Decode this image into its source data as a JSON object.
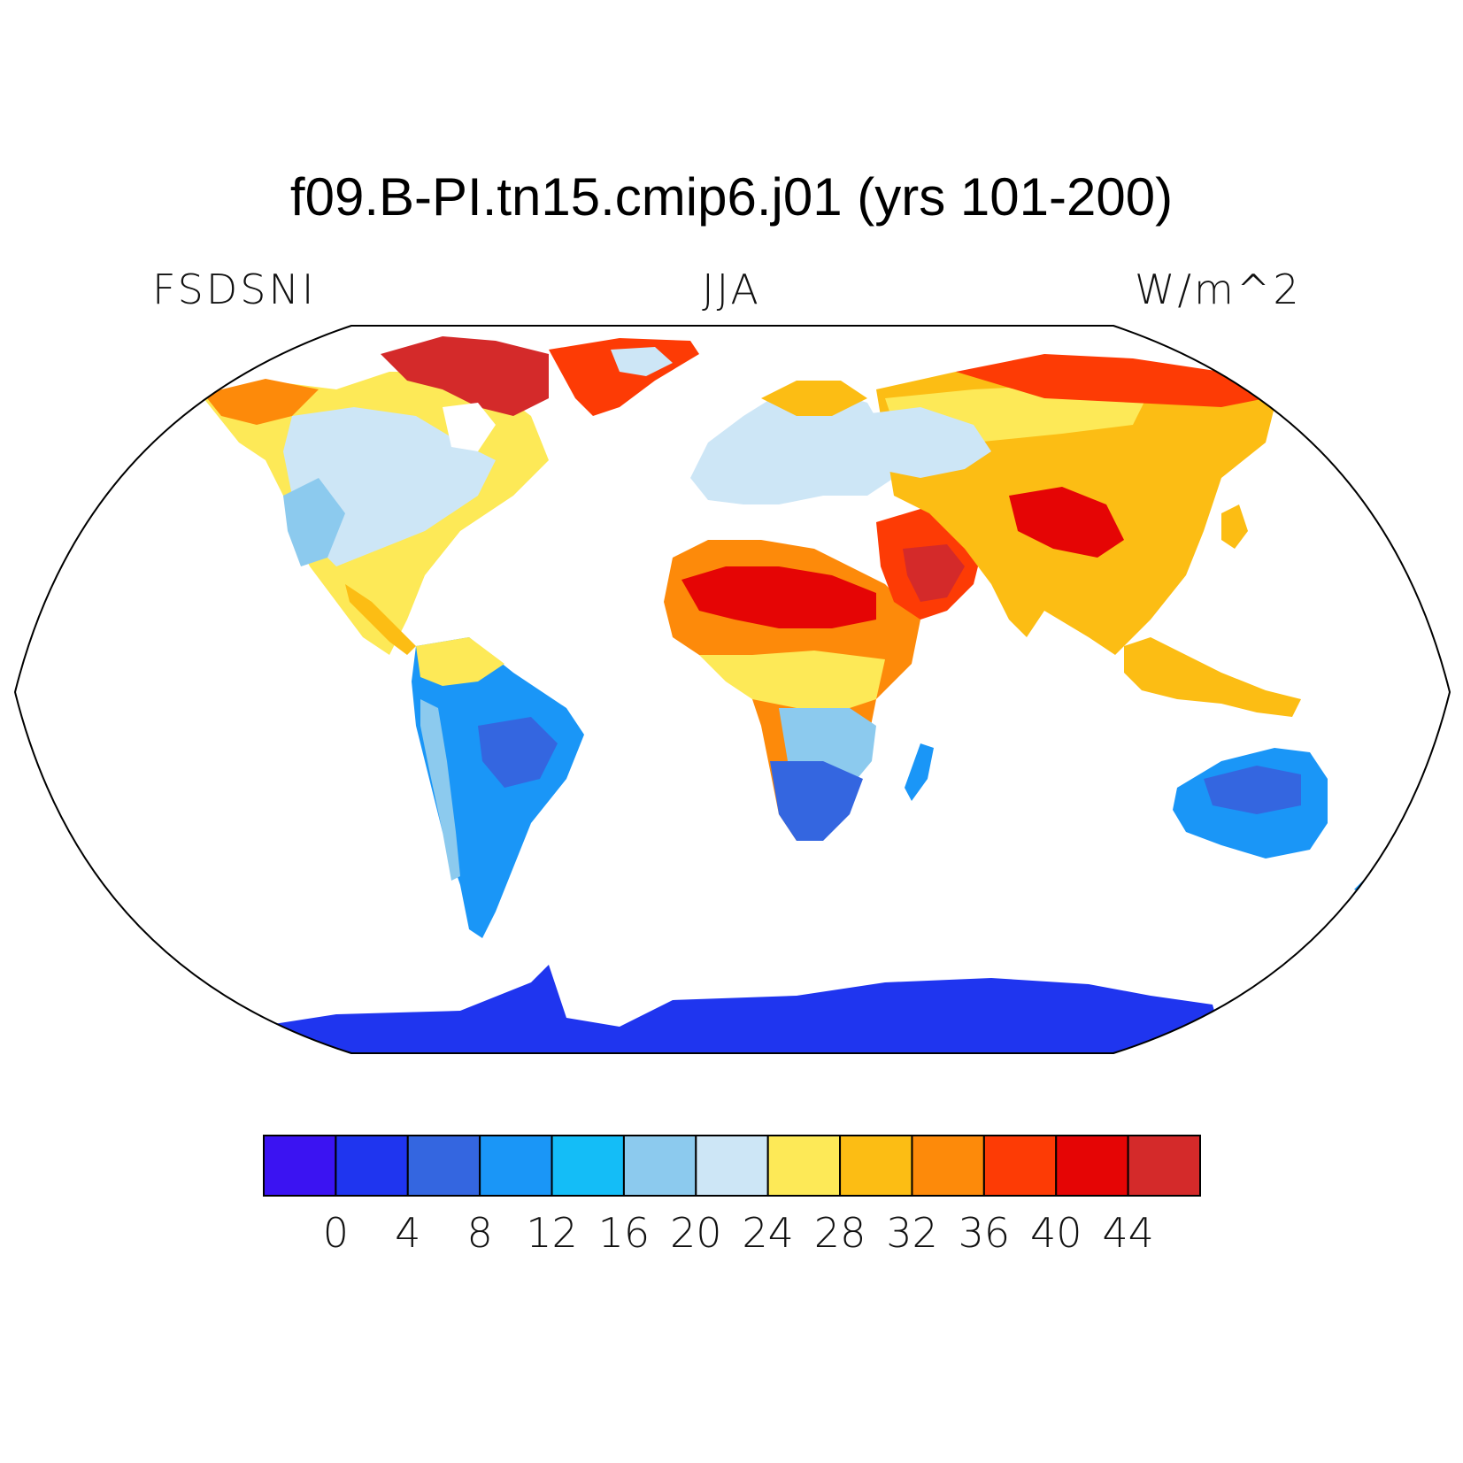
{
  "title": "f09.B-PI.tn15.cmip6.j01 (yrs 101-200)",
  "left_label": "FSDSNI",
  "center_label": "JJA",
  "right_label": "W/m^2",
  "colorbar": {
    "labels": [
      "0",
      "4",
      "8",
      "12",
      "16",
      "20",
      "24",
      "28",
      "32",
      "36",
      "40",
      "44"
    ],
    "colors": [
      "#3b13f2",
      "#1f35ef",
      "#3466e0",
      "#1a96f7",
      "#14bdf7",
      "#8ccaee",
      "#cde6f6",
      "#fde957",
      "#fcbd14",
      "#fd8a0a",
      "#fd3b05",
      "#e50505",
      "#d42a2a"
    ]
  },
  "projection": "Robinson",
  "map_colors": {
    "ocean": "#ffffff",
    "antarctica": "#1f35ef",
    "coastline": "#000000"
  }
}
